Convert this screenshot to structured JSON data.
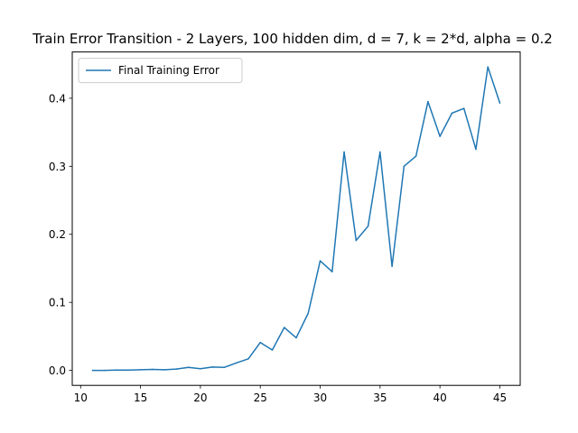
{
  "chart_data": {
    "type": "line",
    "title": "Train Error Transition - 2 Layers, 100 hidden dim, d = 7, k = 2*d, alpha = 0.2",
    "xlabel": "",
    "ylabel": "",
    "xlim": [
      9.3,
      46.7
    ],
    "ylim": [
      -0.022,
      0.468
    ],
    "xticks": [
      10,
      15,
      20,
      25,
      30,
      35,
      40,
      45
    ],
    "xtick_labels": [
      "10",
      "15",
      "20",
      "25",
      "30",
      "35",
      "40",
      "45"
    ],
    "yticks": [
      0.0,
      0.1,
      0.2,
      0.3,
      0.4
    ],
    "ytick_labels": [
      "0.0",
      "0.1",
      "0.2",
      "0.3",
      "0.4"
    ],
    "grid": false,
    "legend_position": "top-left",
    "series": [
      {
        "name": "Final Training Error",
        "color": "#1f77b4",
        "x": [
          11,
          12,
          13,
          14,
          15,
          16,
          17,
          18,
          19,
          20,
          21,
          22,
          23,
          24,
          25,
          26,
          27,
          28,
          29,
          30,
          31,
          32,
          33,
          34,
          35,
          36,
          37,
          38,
          39,
          40,
          41,
          42,
          43,
          44,
          45
        ],
        "y": [
          0.0,
          0.0,
          0.0005,
          0.0005,
          0.001,
          0.0015,
          0.001,
          0.002,
          0.0045,
          0.0025,
          0.005,
          0.0045,
          0.011,
          0.017,
          0.041,
          0.03,
          0.063,
          0.048,
          0.084,
          0.161,
          0.145,
          0.321,
          0.191,
          0.212,
          0.321,
          0.153,
          0.3,
          0.315,
          0.395,
          0.344,
          0.378,
          0.385,
          0.325,
          0.446,
          0.393
        ]
      }
    ]
  }
}
